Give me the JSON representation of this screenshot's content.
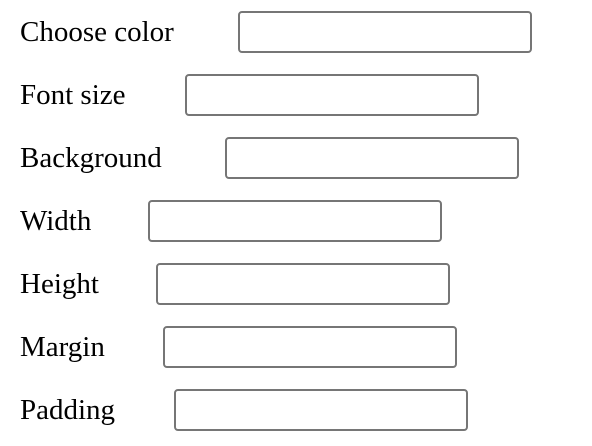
{
  "form": {
    "fields": [
      {
        "label": "Choose color",
        "value": "",
        "placeholder": ""
      },
      {
        "label": "Font size",
        "value": "",
        "placeholder": ""
      },
      {
        "label": "Background",
        "value": "",
        "placeholder": ""
      },
      {
        "label": "Width",
        "value": "",
        "placeholder": ""
      },
      {
        "label": "Height",
        "value": "",
        "placeholder": ""
      },
      {
        "label": "Margin",
        "value": "",
        "placeholder": ""
      },
      {
        "label": "Padding",
        "value": "",
        "placeholder": ""
      }
    ]
  },
  "colors": {
    "text": "#000000",
    "input_border": "#767676",
    "background": "#ffffff"
  }
}
